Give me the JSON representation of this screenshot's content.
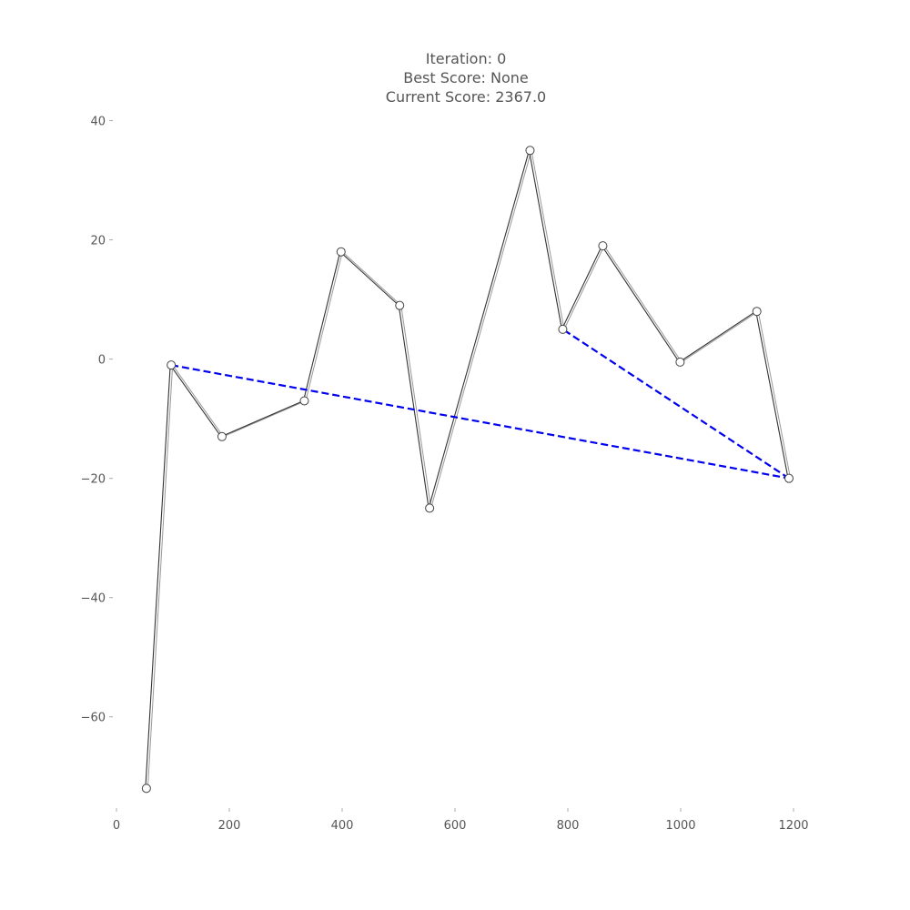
{
  "chart_data": {
    "type": "line",
    "title_lines": [
      "Iteration: 0",
      "Best Score: None",
      "Current Score: 2367.0"
    ],
    "xlim": [
      0,
      1250
    ],
    "ylim": [
      -75,
      41
    ],
    "x_ticks": [
      0,
      200,
      400,
      600,
      800,
      1000,
      1200
    ],
    "x_tick_labels": [
      "0",
      "200",
      "400",
      "600",
      "800",
      "1000",
      "1200"
    ],
    "y_ticks": [
      40,
      20,
      0,
      -20,
      -40,
      -60
    ],
    "y_tick_labels": [
      "40",
      "20",
      "0",
      "−20",
      "−40",
      "−60"
    ],
    "grid": false,
    "series": [
      {
        "role": "tour path",
        "style": "solid",
        "color": "#333333",
        "points": [
          {
            "x": 53,
            "y": -72
          },
          {
            "x": 97,
            "y": -1
          },
          {
            "x": 187,
            "y": -13
          },
          {
            "x": 333,
            "y": -7
          },
          {
            "x": 398,
            "y": 18
          },
          {
            "x": 502,
            "y": 9
          },
          {
            "x": 555,
            "y": -25
          },
          {
            "x": 733,
            "y": 35
          },
          {
            "x": 791,
            "y": 5
          },
          {
            "x": 862,
            "y": 19
          },
          {
            "x": 999,
            "y": -0.5
          },
          {
            "x": 1135,
            "y": 8
          },
          {
            "x": 1192,
            "y": -20
          }
        ]
      },
      {
        "role": "swap edges",
        "style": "dashed",
        "color": "#0000ee",
        "points": [
          {
            "x": 97,
            "y": -1
          },
          {
            "x": 1192,
            "y": -20
          },
          {
            "x": 791,
            "y": 5
          }
        ]
      }
    ]
  }
}
